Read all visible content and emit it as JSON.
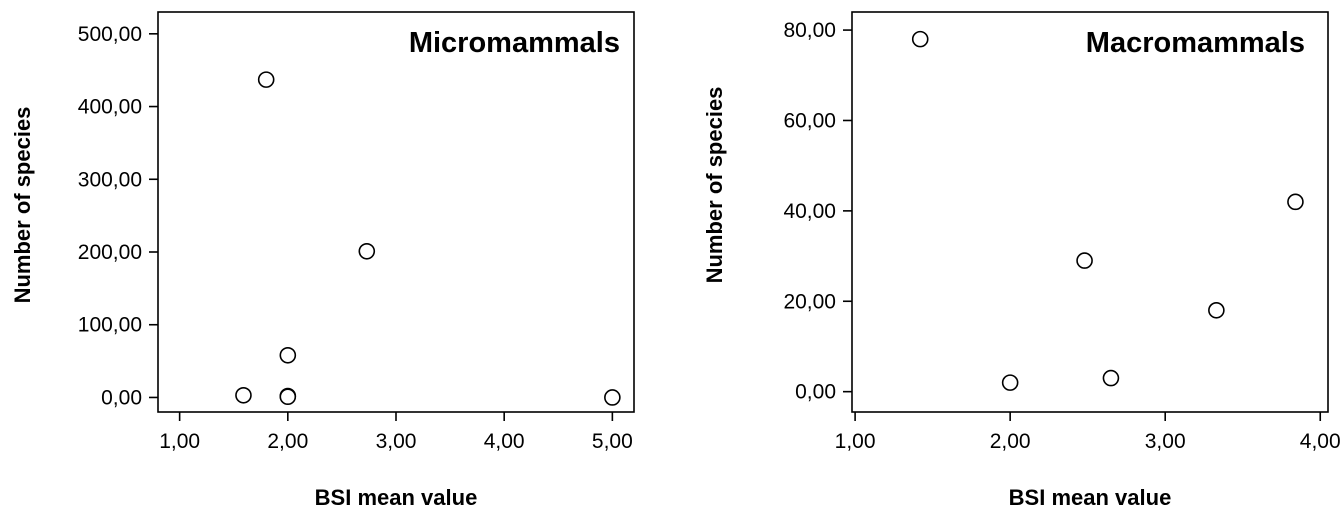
{
  "chart_data": [
    {
      "type": "scatter",
      "title": "Micromammals",
      "xlabel": "BSI mean value",
      "ylabel": "Number of species",
      "xlim": [
        0.8,
        5.2
      ],
      "ylim": [
        -20,
        530
      ],
      "xticks": [
        1,
        2,
        3,
        4,
        5
      ],
      "yticks": [
        0,
        100,
        200,
        300,
        400,
        500
      ],
      "xtick_labels": [
        "1,00",
        "2,00",
        "3,00",
        "4,00",
        "5,00"
      ],
      "ytick_labels": [
        "0,00",
        "100,00",
        "200,00",
        "300,00",
        "400,00",
        "500,00"
      ],
      "grid": false,
      "marker": "open-circle",
      "points": [
        {
          "x": 1.8,
          "y": 437
        },
        {
          "x": 2.73,
          "y": 201
        },
        {
          "x": 2.0,
          "y": 58
        },
        {
          "x": 1.59,
          "y": 3
        },
        {
          "x": 2.0,
          "y": 2
        },
        {
          "x": 2.0,
          "y": 1
        },
        {
          "x": 5.0,
          "y": 0
        }
      ]
    },
    {
      "type": "scatter",
      "title": "Macromammals",
      "xlabel": "BSI mean value",
      "ylabel": "Number of species",
      "xlim": [
        0.98,
        4.05
      ],
      "ylim": [
        -4.5,
        84
      ],
      "xticks": [
        1,
        2,
        3,
        4
      ],
      "yticks": [
        0,
        20,
        40,
        60,
        80
      ],
      "xtick_labels": [
        "1,00",
        "2,00",
        "3,00",
        "4,00"
      ],
      "ytick_labels": [
        "0,00",
        "20,00",
        "40,00",
        "60,00",
        "80,00"
      ],
      "grid": false,
      "marker": "open-circle",
      "points": [
        {
          "x": 1.42,
          "y": 78
        },
        {
          "x": 3.84,
          "y": 42
        },
        {
          "x": 2.48,
          "y": 29
        },
        {
          "x": 3.33,
          "y": 18
        },
        {
          "x": 2.65,
          "y": 3
        },
        {
          "x": 2.0,
          "y": 2
        }
      ]
    }
  ]
}
